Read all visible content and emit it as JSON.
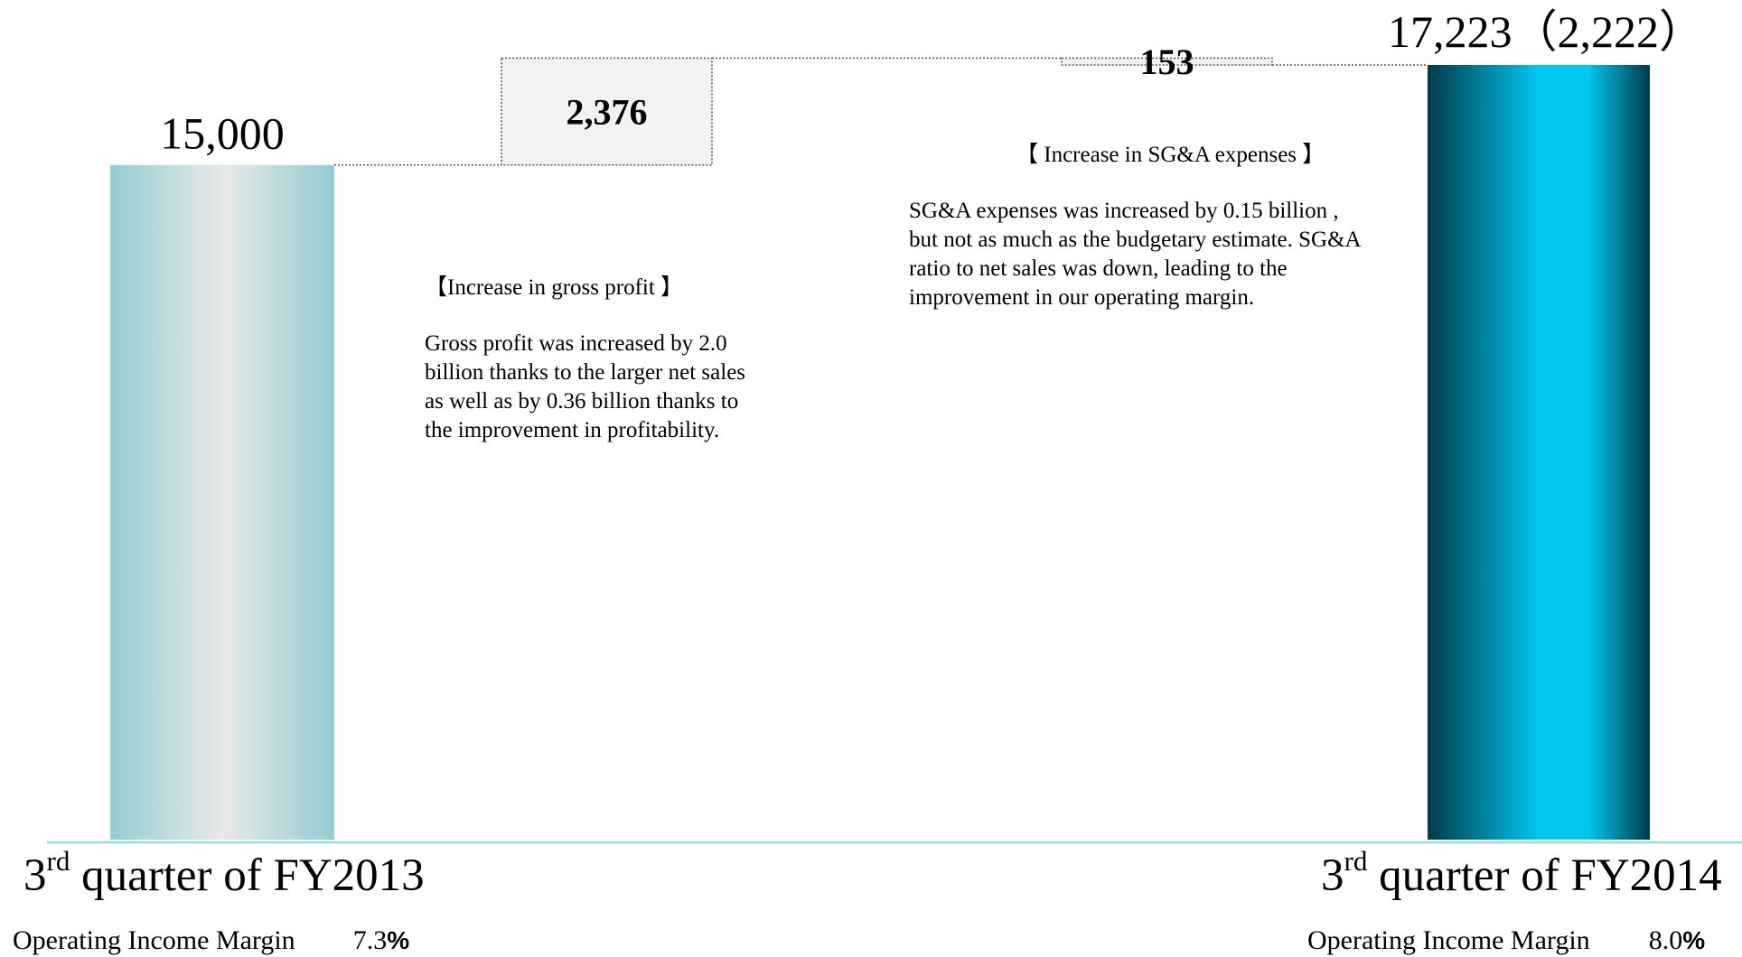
{
  "chart_data": {
    "type": "bar",
    "subtype": "waterfall",
    "categories": [
      "3rd quarter of FY2013",
      "2,376",
      "153",
      "3rd quarter of FY2014"
    ],
    "start": {
      "category": "3rd quarter of FY2013",
      "value": 15000,
      "label": "15,000"
    },
    "steps": [
      {
        "value": 2376,
        "label": "2,376",
        "direction": "increase"
      },
      {
        "value": 153,
        "label": "153",
        "direction": "decrease"
      }
    ],
    "end": {
      "category": "3rd quarter of FY2014",
      "value": 17223,
      "label": "17,223（2,222）"
    },
    "ylim": [
      0,
      17800
    ],
    "grid": false,
    "colors": {
      "start_bar": "#93cdd2",
      "end_bar": "#00c8ef",
      "end_bar_dark": "#003a4a",
      "step_fill": "#f2f2f2",
      "baseline": "#a9dbe3"
    }
  },
  "notes": [
    {
      "heading": "【Increase in gross profit 】",
      "body": "  Gross profit  was increased by 2.0\nbillion thanks to the larger net sales\nas well as by 0.36 billion thanks to\nthe improvement in profitability."
    },
    {
      "heading": "【 Increase in SG&A  expenses 】",
      "body": "SG&A expenses was increased by 0.15 billion ,\nbut not as much as the  budgetary estimate. SG&A\nratio to net sales was down, leading to the\nimprovement in our operating margin."
    }
  ],
  "periods": [
    {
      "number": "3",
      "suffix": "rd",
      "rest": " quarter of FY2013",
      "margin_label": "Operating Income Margin",
      "margin_value": "7.3",
      "margin_unit": "%"
    },
    {
      "number": "3",
      "suffix": "rd",
      "rest": " quarter of FY2014",
      "margin_label": "Operating Income Margin",
      "margin_value": "8.0",
      "margin_unit": "%"
    }
  ]
}
